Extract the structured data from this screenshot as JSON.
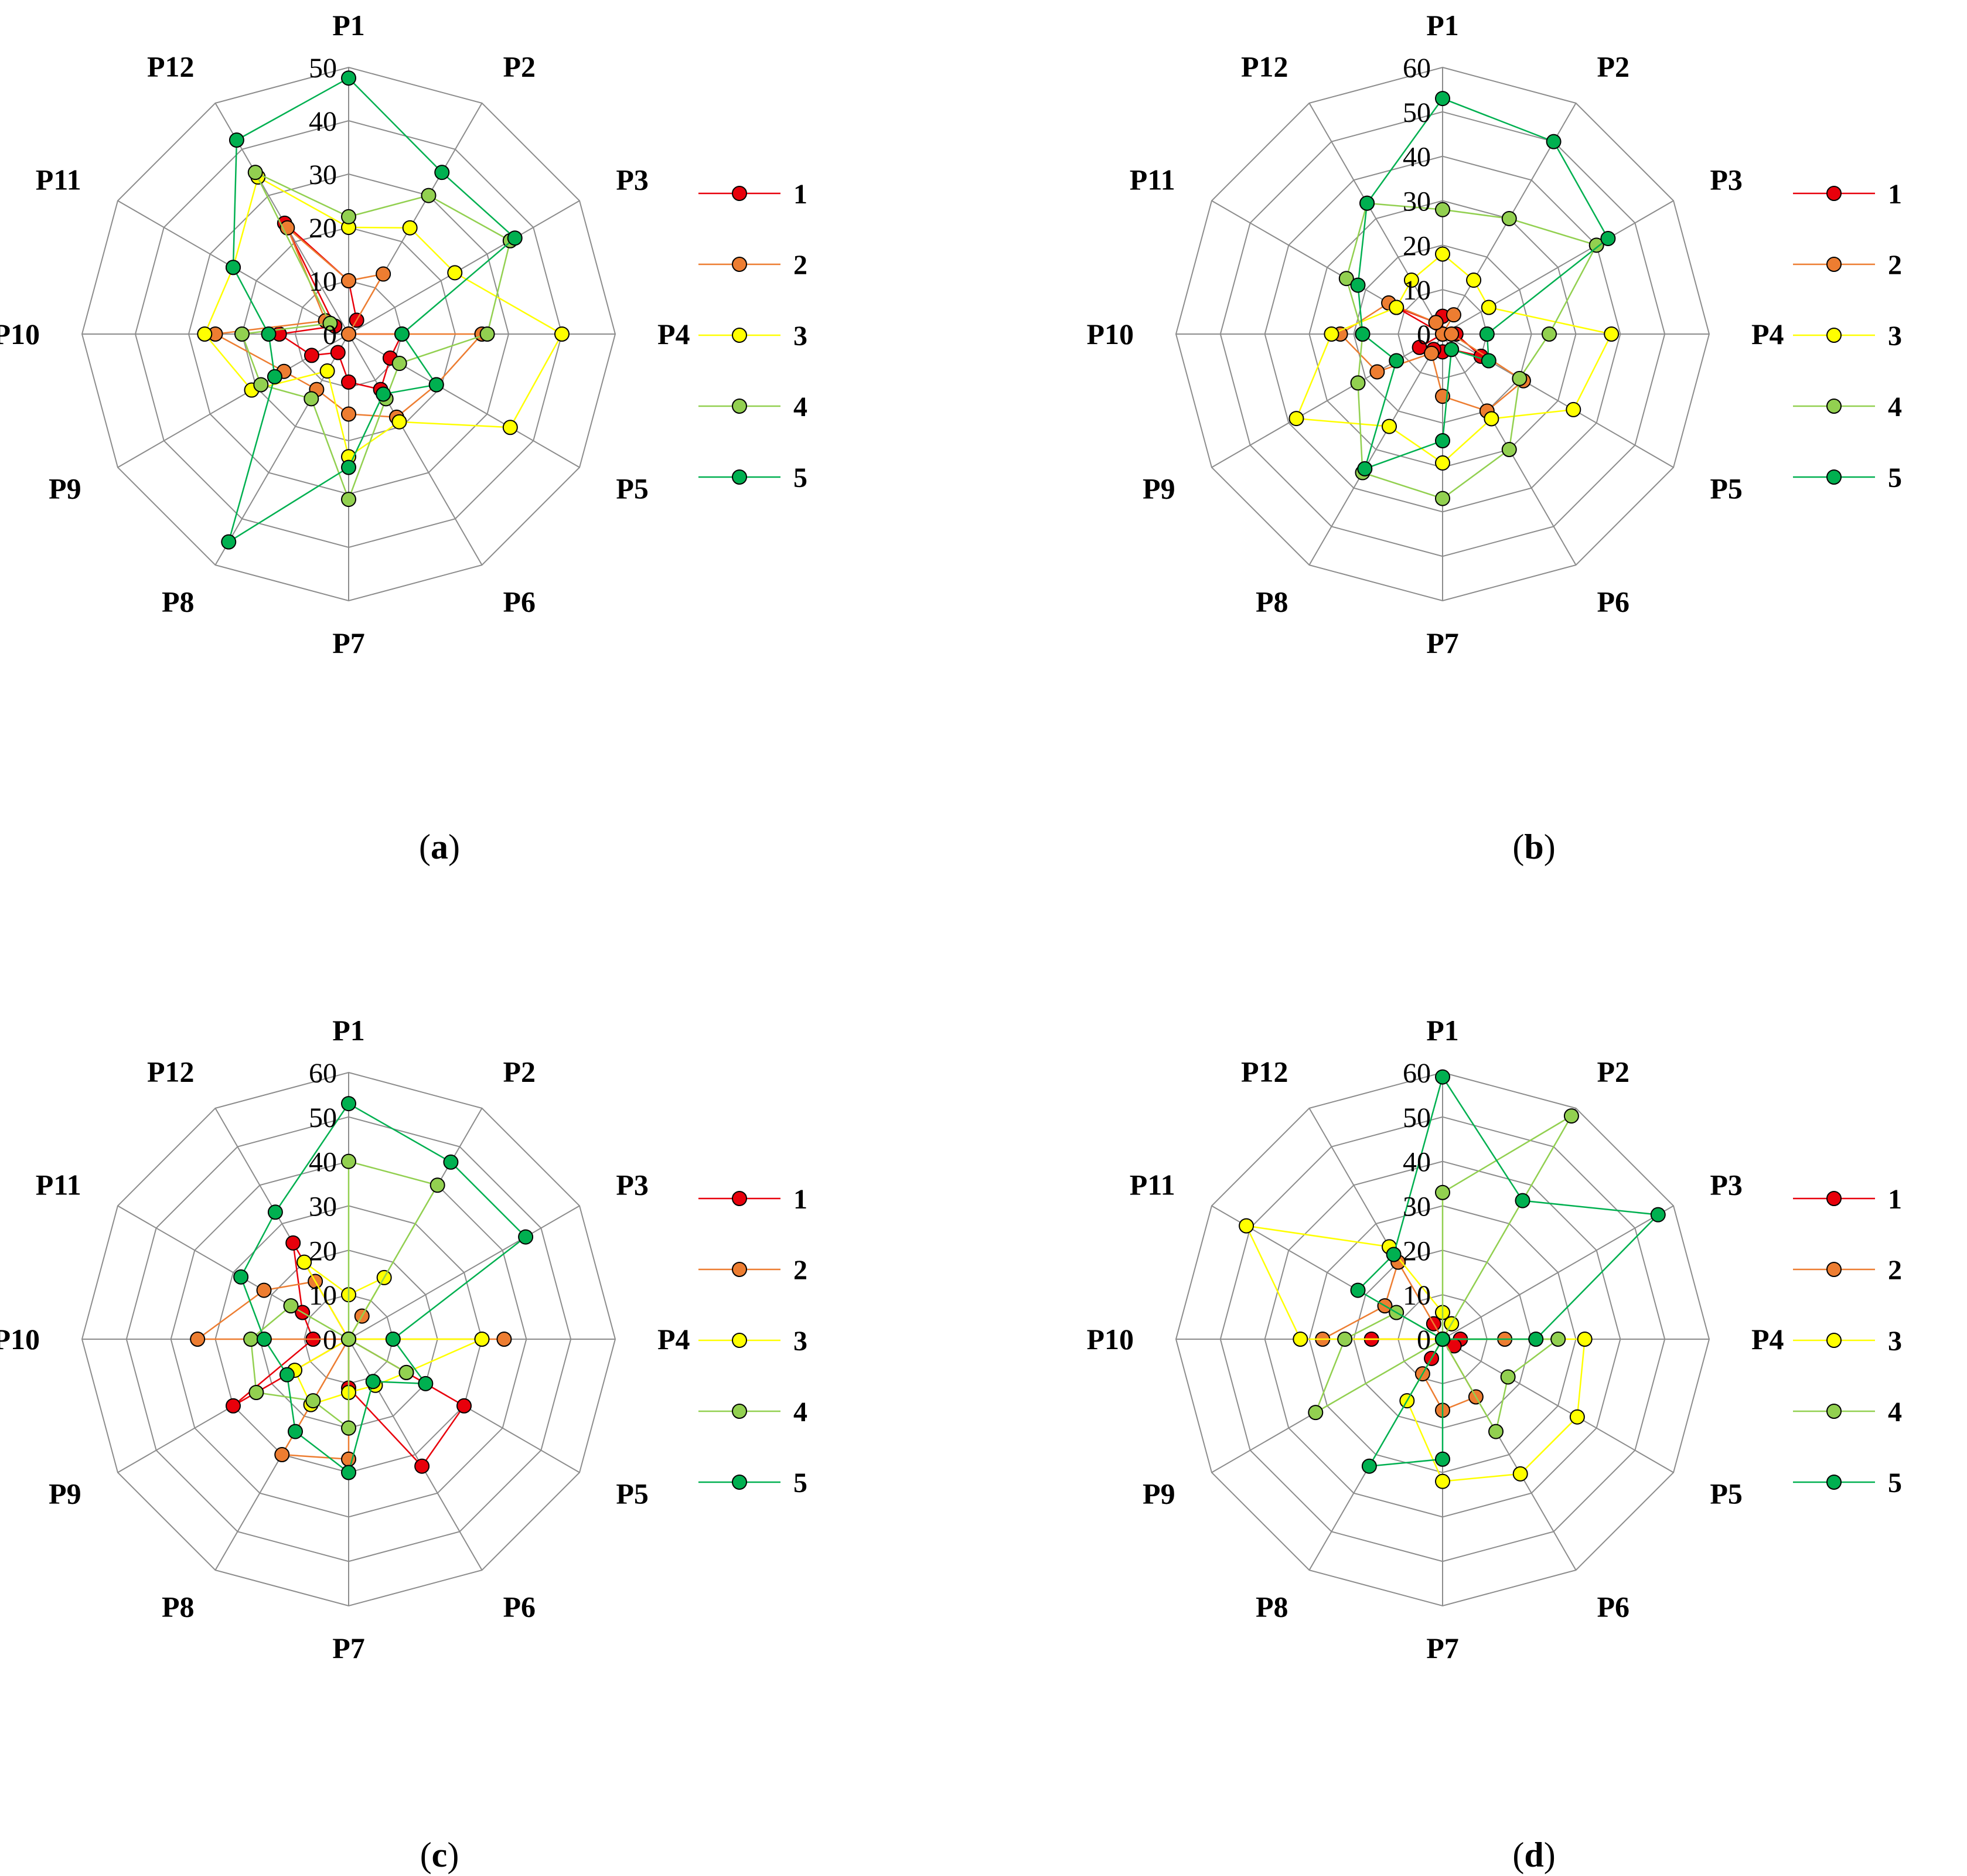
{
  "chart_data": [
    {
      "panel": "(a)",
      "panel_letter": "a",
      "type": "radar",
      "categories": [
        "P1",
        "P2",
        "P3",
        "P4",
        "P5",
        "P6",
        "P7",
        "P8",
        "P9",
        "P10",
        "P11",
        "P12"
      ],
      "rmax": 50,
      "ticks": [
        0,
        10,
        20,
        30,
        40,
        50
      ],
      "series": [
        {
          "name": "1",
          "color": "#e8000b",
          "values": [
            10,
            3,
            0,
            10,
            9,
            12,
            9,
            4,
            8,
            13,
            3,
            24
          ]
        },
        {
          "name": "2",
          "color": "#ed7d31",
          "values": [
            10,
            13,
            0,
            25,
            19,
            18,
            15,
            12,
            14,
            25,
            5,
            23
          ]
        },
        {
          "name": "3",
          "color": "#ffff00",
          "values": [
            20,
            23,
            23,
            40,
            35,
            19,
            23,
            8,
            21,
            27,
            25,
            34
          ]
        },
        {
          "name": "4",
          "color": "#92d050",
          "values": [
            22,
            30,
            35,
            26,
            11,
            14,
            31,
            14,
            19,
            20,
            4,
            35
          ]
        },
        {
          "name": "5",
          "color": "#00b050",
          "values": [
            48,
            35,
            36,
            10,
            19,
            13,
            25,
            45,
            16,
            15,
            25,
            42
          ]
        }
      ]
    },
    {
      "panel": "(b)",
      "panel_letter": "b",
      "type": "radar",
      "categories": [
        "P1",
        "P2",
        "P3",
        "P4",
        "P5",
        "P6",
        "P7",
        "P8",
        "P9",
        "P10",
        "P11",
        "P12"
      ],
      "rmax": 60,
      "ticks": [
        0,
        10,
        20,
        30,
        40,
        50,
        60
      ],
      "series": [
        {
          "name": "1",
          "color": "#e8000b",
          "values": [
            4,
            0,
            0,
            3,
            10,
            4,
            4,
            4,
            6,
            0,
            12,
            3
          ]
        },
        {
          "name": "2",
          "color": "#ed7d31",
          "values": [
            0,
            5,
            0,
            2,
            21,
            20,
            14,
            5,
            17,
            23,
            14,
            3
          ]
        },
        {
          "name": "3",
          "color": "#ffff00",
          "values": [
            18,
            14,
            12,
            38,
            34,
            22,
            29,
            24,
            38,
            25,
            12,
            14
          ]
        },
        {
          "name": "4",
          "color": "#92d050",
          "values": [
            28,
            30,
            40,
            24,
            20,
            30,
            37,
            36,
            22,
            18,
            25,
            34
          ]
        },
        {
          "name": "5",
          "color": "#00b050",
          "values": [
            53,
            50,
            43,
            10,
            12,
            4,
            24,
            35,
            12,
            18,
            22,
            34
          ]
        }
      ]
    },
    {
      "panel": "(c)",
      "panel_letter": "c",
      "type": "radar",
      "categories": [
        "P1",
        "P2",
        "P3",
        "P4",
        "P5",
        "P6",
        "P7",
        "P8",
        "P9",
        "P10",
        "P11",
        "P12"
      ],
      "rmax": 60,
      "ticks": [
        0,
        10,
        20,
        30,
        40,
        50,
        60
      ],
      "series": [
        {
          "name": "1",
          "color": "#e8000b",
          "values": [
            0,
            0,
            0,
            0,
            30,
            33,
            11,
            0,
            30,
            8,
            12,
            25
          ]
        },
        {
          "name": "2",
          "color": "#ed7d31",
          "values": [
            0,
            6,
            0,
            35,
            0,
            0,
            27,
            30,
            0,
            34,
            22,
            15
          ]
        },
        {
          "name": "3",
          "color": "#ffff00",
          "values": [
            10,
            16,
            0,
            30,
            15,
            12,
            12,
            17,
            14,
            0,
            0,
            20
          ]
        },
        {
          "name": "4",
          "color": "#92d050",
          "values": [
            40,
            40,
            0,
            0,
            15,
            0,
            20,
            16,
            24,
            22,
            15,
            0
          ]
        },
        {
          "name": "5",
          "color": "#00b050",
          "values": [
            53,
            46,
            46,
            10,
            20,
            11,
            30,
            24,
            16,
            19,
            28,
            33
          ]
        }
      ]
    },
    {
      "panel": "(d)",
      "panel_letter": "d",
      "type": "radar",
      "categories": [
        "P1",
        "P2",
        "P3",
        "P4",
        "P5",
        "P6",
        "P7",
        "P8",
        "P9",
        "P10",
        "P11",
        "P12"
      ],
      "rmax": 60,
      "ticks": [
        0,
        10,
        20,
        30,
        40,
        50,
        60
      ],
      "series": [
        {
          "name": "1",
          "color": "#e8000b",
          "values": [
            0,
            0,
            0,
            4,
            3,
            0,
            0,
            5,
            0,
            16,
            0,
            4
          ]
        },
        {
          "name": "2",
          "color": "#ed7d31",
          "values": [
            0,
            4,
            0,
            14,
            0,
            15,
            16,
            9,
            0,
            27,
            15,
            20
          ]
        },
        {
          "name": "3",
          "color": "#ffff00",
          "values": [
            6,
            4,
            0,
            32,
            35,
            35,
            32,
            16,
            0,
            32,
            51,
            24
          ]
        },
        {
          "name": "4",
          "color": "#92d050",
          "values": [
            33,
            58,
            0,
            26,
            17,
            24,
            0,
            0,
            33,
            22,
            12,
            0
          ]
        },
        {
          "name": "5",
          "color": "#00b050",
          "values": [
            59,
            36,
            56,
            21,
            0,
            0,
            27,
            33,
            0,
            0,
            22,
            22
          ]
        }
      ]
    }
  ]
}
